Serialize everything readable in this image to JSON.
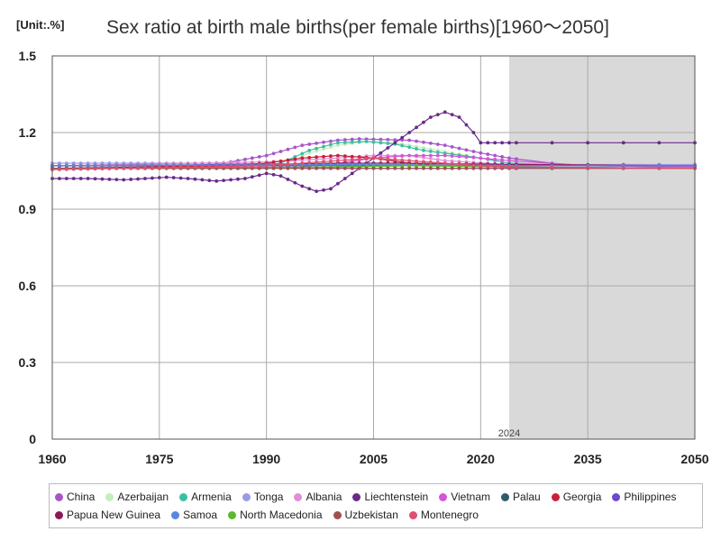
{
  "unit_label": "[Unit:.%]",
  "chart_data": {
    "type": "line",
    "title": "Sex ratio at birth male births(per female births)[1960～2050]",
    "xlabel": "",
    "ylabel": "",
    "xlim": [
      1960,
      2050
    ],
    "ylim": [
      0,
      1.5
    ],
    "x_ticks": [
      "1960",
      "1975",
      "1990",
      "2005",
      "2020",
      "2035",
      "2050"
    ],
    "y_ticks": [
      "0",
      "0.3",
      "0.6",
      "0.9",
      "1.2",
      "1.5"
    ],
    "projection_start": 2024,
    "projection_label": "2024",
    "grid": true,
    "legend_position": "bottom",
    "series": [
      {
        "name": "China",
        "color": "#a855c8",
        "points": [
          [
            1960,
            1.07
          ],
          [
            1975,
            1.07
          ],
          [
            1983,
            1.075
          ],
          [
            1986,
            1.09
          ],
          [
            1990,
            1.11
          ],
          [
            1995,
            1.15
          ],
          [
            2000,
            1.17
          ],
          [
            2003,
            1.175
          ],
          [
            2010,
            1.17
          ],
          [
            2015,
            1.15
          ],
          [
            2020,
            1.12
          ],
          [
            2024,
            1.1
          ],
          [
            2030,
            1.08
          ],
          [
            2035,
            1.07
          ],
          [
            2050,
            1.065
          ]
        ]
      },
      {
        "name": "Azerbaijan",
        "color": "#c6ecc0",
        "points": [
          [
            1960,
            1.06
          ],
          [
            1985,
            1.06
          ],
          [
            1990,
            1.06
          ],
          [
            1993,
            1.08
          ],
          [
            1996,
            1.12
          ],
          [
            2000,
            1.15
          ],
          [
            2004,
            1.165
          ],
          [
            2008,
            1.16
          ],
          [
            2012,
            1.14
          ],
          [
            2016,
            1.12
          ],
          [
            2020,
            1.1
          ],
          [
            2024,
            1.08
          ],
          [
            2035,
            1.07
          ],
          [
            2050,
            1.065
          ]
        ]
      },
      {
        "name": "Armenia",
        "color": "#3bbfa4",
        "points": [
          [
            1960,
            1.06
          ],
          [
            1988,
            1.06
          ],
          [
            1992,
            1.08
          ],
          [
            1996,
            1.13
          ],
          [
            2000,
            1.16
          ],
          [
            2004,
            1.165
          ],
          [
            2008,
            1.155
          ],
          [
            2012,
            1.13
          ],
          [
            2016,
            1.115
          ],
          [
            2020,
            1.1
          ],
          [
            2024,
            1.08
          ],
          [
            2035,
            1.07
          ],
          [
            2050,
            1.065
          ]
        ]
      },
      {
        "name": "Tonga",
        "color": "#9a9ae6",
        "points": [
          [
            1960,
            1.08
          ],
          [
            1980,
            1.08
          ],
          [
            2000,
            1.075
          ],
          [
            2024,
            1.075
          ],
          [
            2050,
            1.075
          ]
        ]
      },
      {
        "name": "Albania",
        "color": "#e08fd6",
        "points": [
          [
            1960,
            1.07
          ],
          [
            1980,
            1.08
          ],
          [
            1990,
            1.085
          ],
          [
            2000,
            1.1
          ],
          [
            2005,
            1.11
          ],
          [
            2010,
            1.11
          ],
          [
            2015,
            1.09
          ],
          [
            2024,
            1.075
          ],
          [
            2050,
            1.065
          ]
        ]
      },
      {
        "name": "Liechtenstein",
        "color": "#6a2a8a",
        "points": [
          [
            1960,
            1.02
          ],
          [
            1965,
            1.02
          ],
          [
            1970,
            1.015
          ],
          [
            1976,
            1.025
          ],
          [
            1979,
            1.02
          ],
          [
            1983,
            1.01
          ],
          [
            1987,
            1.02
          ],
          [
            1990,
            1.04
          ],
          [
            1992,
            1.03
          ],
          [
            1995,
            0.99
          ],
          [
            1997,
            0.97
          ],
          [
            1999,
            0.98
          ],
          [
            2001,
            1.02
          ],
          [
            2004,
            1.08
          ],
          [
            2007,
            1.14
          ],
          [
            2010,
            1.2
          ],
          [
            2013,
            1.26
          ],
          [
            2015,
            1.28
          ],
          [
            2017,
            1.26
          ],
          [
            2019,
            1.2
          ],
          [
            2020,
            1.16
          ],
          [
            2024,
            1.16
          ],
          [
            2050,
            1.16
          ]
        ]
      },
      {
        "name": "Vietnam",
        "color": "#d655d6",
        "points": [
          [
            1960,
            1.06
          ],
          [
            1995,
            1.065
          ],
          [
            2000,
            1.08
          ],
          [
            2005,
            1.1
          ],
          [
            2010,
            1.11
          ],
          [
            2015,
            1.11
          ],
          [
            2020,
            1.1
          ],
          [
            2024,
            1.09
          ],
          [
            2035,
            1.07
          ],
          [
            2050,
            1.065
          ]
        ]
      },
      {
        "name": "Palau",
        "color": "#2d5a6e",
        "points": [
          [
            1960,
            1.07
          ],
          [
            2000,
            1.07
          ],
          [
            2024,
            1.07
          ],
          [
            2050,
            1.07
          ]
        ]
      },
      {
        "name": "Georgia",
        "color": "#c8203a",
        "points": [
          [
            1960,
            1.06
          ],
          [
            1985,
            1.07
          ],
          [
            1990,
            1.08
          ],
          [
            1995,
            1.1
          ],
          [
            2000,
            1.11
          ],
          [
            2005,
            1.1
          ],
          [
            2010,
            1.08
          ],
          [
            2015,
            1.07
          ],
          [
            2024,
            1.065
          ],
          [
            2050,
            1.06
          ]
        ]
      },
      {
        "name": "Philippines",
        "color": "#6a4ad0",
        "points": [
          [
            1960,
            1.06
          ],
          [
            2000,
            1.06
          ],
          [
            2024,
            1.06
          ],
          [
            2050,
            1.06
          ]
        ]
      },
      {
        "name": "Papua New Guinea",
        "color": "#8a1a5a",
        "points": [
          [
            1960,
            1.07
          ],
          [
            1990,
            1.075
          ],
          [
            2000,
            1.08
          ],
          [
            2010,
            1.08
          ],
          [
            2024,
            1.075
          ],
          [
            2050,
            1.07
          ]
        ]
      },
      {
        "name": "Samoa",
        "color": "#5a86e0",
        "points": [
          [
            1960,
            1.07
          ],
          [
            2000,
            1.075
          ],
          [
            2024,
            1.07
          ],
          [
            2050,
            1.07
          ]
        ]
      },
      {
        "name": "North Macedonia",
        "color": "#5cb82a",
        "points": [
          [
            1960,
            1.06
          ],
          [
            1990,
            1.06
          ],
          [
            2000,
            1.065
          ],
          [
            2010,
            1.07
          ],
          [
            2024,
            1.065
          ],
          [
            2050,
            1.06
          ]
        ]
      },
      {
        "name": "Uzbekistan",
        "color": "#a05050",
        "points": [
          [
            1960,
            1.06
          ],
          [
            2000,
            1.06
          ],
          [
            2024,
            1.06
          ],
          [
            2050,
            1.06
          ]
        ]
      },
      {
        "name": "Montenegro",
        "color": "#e04f6f",
        "points": [
          [
            1960,
            1.055
          ],
          [
            1990,
            1.07
          ],
          [
            2000,
            1.09
          ],
          [
            2005,
            1.1
          ],
          [
            2010,
            1.09
          ],
          [
            2020,
            1.07
          ],
          [
            2024,
            1.065
          ],
          [
            2050,
            1.06
          ]
        ]
      }
    ]
  }
}
